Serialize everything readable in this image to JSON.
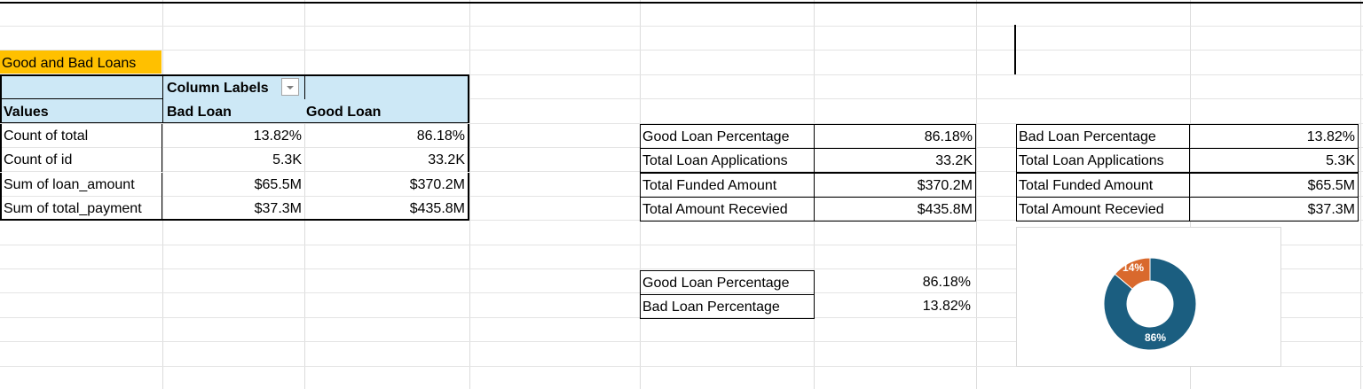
{
  "pivot": {
    "title": "Good and Bad Loans",
    "column_labels": "Column Labels",
    "values_label": "Values",
    "col_bad": "Bad Loan",
    "col_good": "Good Loan",
    "rows": [
      {
        "label": "Count of total",
        "bad": "13.82%",
        "good": "86.18%"
      },
      {
        "label": "Count of id",
        "bad": "5.3K",
        "good": "33.2K"
      },
      {
        "label": "Sum of loan_amount",
        "bad": "$65.5M",
        "good": "$370.2M"
      },
      {
        "label": "Sum of total_payment",
        "bad": "$37.3M",
        "good": "$435.8M"
      }
    ]
  },
  "good_summary": {
    "rows": [
      {
        "label": "Good Loan Percentage",
        "value": "86.18%"
      },
      {
        "label": "Total Loan Applications",
        "value": "33.2K"
      },
      {
        "label": "Total Funded Amount",
        "value": "$370.2M"
      },
      {
        "label": "Total Amount Recevied",
        "value": "$435.8M"
      }
    ]
  },
  "bad_summary": {
    "rows": [
      {
        "label": "Bad Loan Percentage",
        "value": "13.82%"
      },
      {
        "label": "Total Loan Applications",
        "value": "5.3K"
      },
      {
        "label": "Total Funded Amount",
        "value": "$65.5M"
      },
      {
        "label": "Total Amount Recevied",
        "value": "$37.3M"
      }
    ]
  },
  "percent_table": {
    "rows": [
      {
        "label": "Good Loan Percentage",
        "value": "86.18%"
      },
      {
        "label": "Bad Loan Percentage",
        "value": "13.82%"
      }
    ]
  },
  "chart_data": {
    "type": "pie",
    "subtype": "doughnut",
    "categories": [
      "Good Loan",
      "Bad Loan"
    ],
    "values": [
      86.18,
      13.82
    ],
    "data_labels": [
      "86%",
      "14%"
    ],
    "colors": [
      "#1b5e80",
      "#d9692d"
    ],
    "title": "",
    "legend": "none"
  },
  "colors": {
    "header_fill": "#cde8f6",
    "title_fill": "#ffc000",
    "gridline": "#dcdcdc"
  },
  "icons": {
    "filter_dropdown": "chevron-down-icon"
  }
}
